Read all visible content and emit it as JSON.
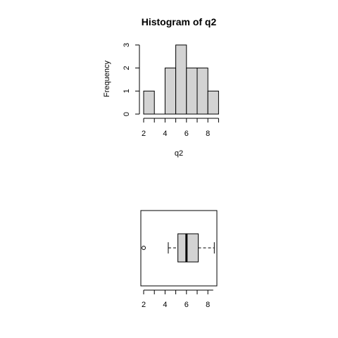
{
  "chart_data": [
    {
      "type": "bar",
      "title": "Histogram of q2",
      "xlabel": "q2",
      "ylabel": "Frequency",
      "bins": [
        [
          2,
          3
        ],
        [
          3,
          4
        ],
        [
          4,
          5
        ],
        [
          5,
          6
        ],
        [
          6,
          7
        ],
        [
          7,
          8
        ],
        [
          8,
          9
        ]
      ],
      "values": [
        1,
        0,
        2,
        3,
        2,
        2,
        1
      ],
      "xticks": [
        "2",
        "4",
        "6",
        "8"
      ],
      "yticks": [
        "0",
        "1",
        "2",
        "3"
      ],
      "xlim": [
        2,
        9
      ],
      "ylim": [
        0,
        3
      ],
      "grid": false
    },
    {
      "type": "boxplot",
      "orientation": "horizontal",
      "min_whisker": 4.3,
      "q1": 5.2,
      "median": 6.0,
      "q3": 7.1,
      "max_whisker": 8.6,
      "outliers": [
        2.0
      ],
      "xticks": [
        "2",
        "4",
        "6",
        "8"
      ],
      "xlim": [
        1.8,
        8.8
      ],
      "grid": false
    }
  ]
}
